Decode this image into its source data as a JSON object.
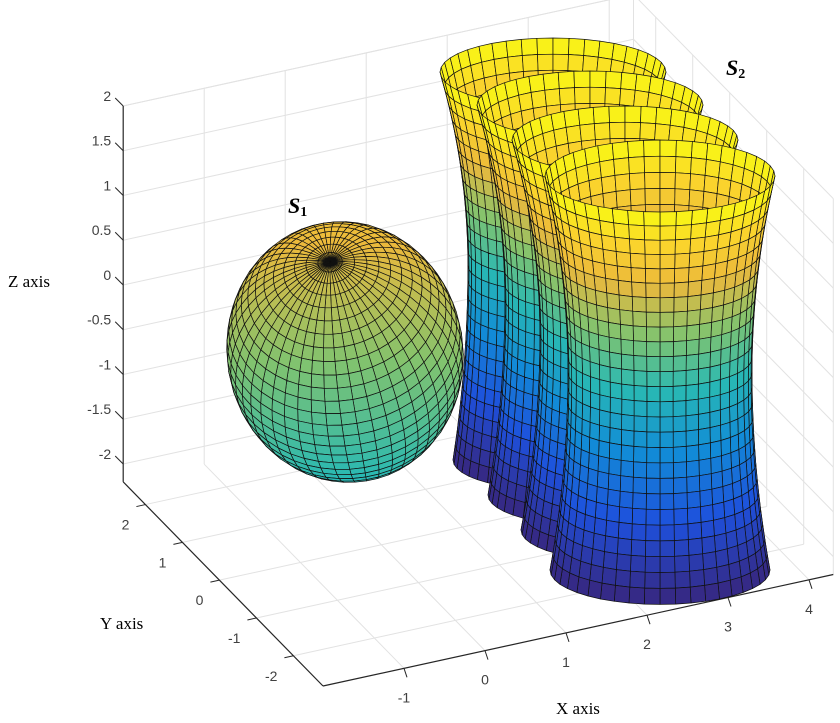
{
  "chart_data": {
    "type": "surface",
    "title": "",
    "xlabel": "X axis",
    "ylabel": "Y axis",
    "zlabel": "Z axis",
    "xlim": [
      -2,
      4.3
    ],
    "ylim": [
      -2.8,
      2.6
    ],
    "zlim": [
      -2.2,
      2
    ],
    "xticks": [
      "-1",
      "0",
      "1",
      "2",
      "3",
      "4"
    ],
    "xtick_values": [
      -1,
      0,
      1,
      2,
      3,
      4
    ],
    "yticks": [
      "-2",
      "-1",
      "0",
      "1",
      "2"
    ],
    "ytick_values": [
      -2,
      -1,
      0,
      1,
      2
    ],
    "zticks": [
      "-2",
      "-1.5",
      "-1",
      "-0.5",
      "0",
      "0.5",
      "1",
      "1.5",
      "2"
    ],
    "ztick_values": [
      -2,
      -1.5,
      -1,
      -0.5,
      0,
      0.5,
      1,
      1.5,
      2
    ],
    "grid": true,
    "colormap": "parula",
    "surfaces": [
      {
        "name": "S1",
        "shape": "ellipsoid"
      },
      {
        "name": "S2",
        "shape": "hyperboloid tubes",
        "count": 4
      }
    ],
    "annotations": [
      {
        "letter": "S",
        "sub": "1"
      },
      {
        "letter": "S",
        "sub": "2"
      }
    ]
  }
}
